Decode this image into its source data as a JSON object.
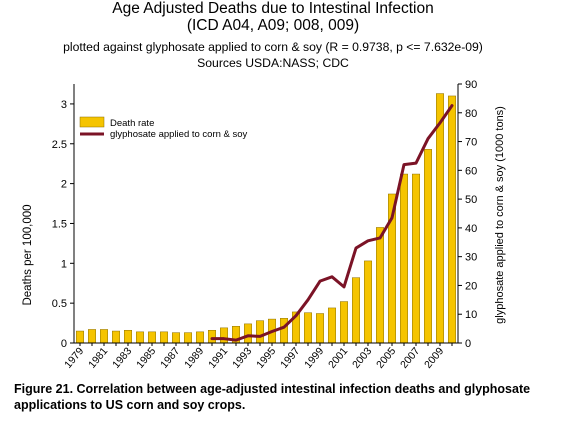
{
  "chart_data": {
    "type": "bar",
    "title": "Age Adjusted Deaths due to Intestinal Infection",
    "subtitle_lines": [
      "(ICD A04, A09; 008, 009)",
      "plotted against glyphosate applied to corn & soy (R = 0.9738, p <= 7.632e-09)",
      "Sources USDA:NASS; CDC"
    ],
    "ylabel": "Deaths per 100,000",
    "y2label": "glyphosate applied to corn & soy (1000 tons)",
    "ylim": [
      0,
      3.25
    ],
    "y2lim": [
      0,
      90
    ],
    "yticks": [
      0,
      0.5,
      1,
      1.5,
      2,
      2.5,
      3
    ],
    "ytick_labels": [
      "0",
      "0.5",
      "1",
      "1.5",
      "2",
      "2.5",
      "3"
    ],
    "y2ticks": [
      0,
      10,
      20,
      30,
      40,
      50,
      60,
      70,
      80,
      90
    ],
    "y2tick_labels": [
      "0",
      "10",
      "20",
      "30",
      "40",
      "50",
      "60",
      "70",
      "80",
      "90"
    ],
    "categories": [
      "1979",
      "1980",
      "1981",
      "1982",
      "1983",
      "1984",
      "1985",
      "1986",
      "1987",
      "1988",
      "1989",
      "1990",
      "1991",
      "1992",
      "1993",
      "1994",
      "1995",
      "1996",
      "1997",
      "1998",
      "1999",
      "2000",
      "2001",
      "2002",
      "2003",
      "2004",
      "2005",
      "2006",
      "2007",
      "2008",
      "2009",
      "2010"
    ],
    "xtick_labels": [
      "1979",
      "1981",
      "1983",
      "1985",
      "1987",
      "1989",
      "1991",
      "1993",
      "1995",
      "1997",
      "1999",
      "2001",
      "2003",
      "2005",
      "2007",
      "2009"
    ],
    "grid": false,
    "legend_position": "top-left",
    "series": [
      {
        "name": "Death rate",
        "kind": "bar",
        "axis": "left",
        "color": "#f5c400",
        "values": [
          0.15,
          0.17,
          0.17,
          0.15,
          0.16,
          0.14,
          0.14,
          0.14,
          0.13,
          0.13,
          0.14,
          0.16,
          0.19,
          0.21,
          0.24,
          0.28,
          0.3,
          0.31,
          0.39,
          0.38,
          0.37,
          0.44,
          0.52,
          0.82,
          1.03,
          1.45,
          1.87,
          2.12,
          2.12,
          2.43,
          3.13,
          3.1
        ]
      },
      {
        "name": "glyphosate applied to corn & soy",
        "kind": "line",
        "axis": "right",
        "color": "#7b1326",
        "x": [
          "1990",
          "1991",
          "1992",
          "1993",
          "1994",
          "1995",
          "1996",
          "1997",
          "1998",
          "1999",
          "2000",
          "2001",
          "2002",
          "2003",
          "2004",
          "2005",
          "2006",
          "2007",
          "2008",
          "2009",
          "2010"
        ],
        "values": [
          1.5,
          1.5,
          1.0,
          2.5,
          2.3,
          4.0,
          5.5,
          9.5,
          15.0,
          21.5,
          23.0,
          19.5,
          33.0,
          35.5,
          36.5,
          43.5,
          62.0,
          62.5,
          71.0,
          76.5,
          82.5
        ]
      }
    ]
  },
  "caption": "Figure 21. Correlation between age-adjusted intestinal infection deaths and glyphosate applications to US corn and soy crops."
}
